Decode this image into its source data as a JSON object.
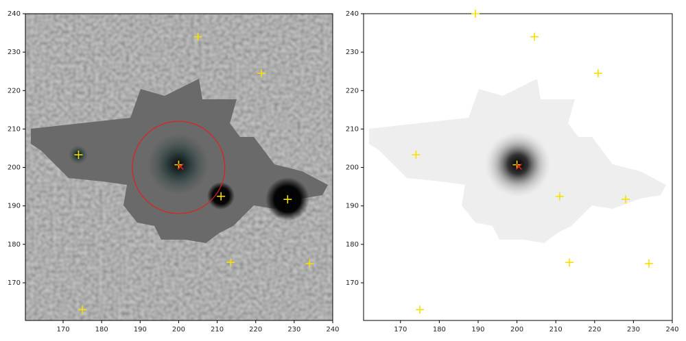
{
  "chart_data": [
    {
      "type": "scatter",
      "xlim": [
        160.2,
        240
      ],
      "ylim": [
        160.2,
        240
      ],
      "xticks": [
        170,
        180,
        190,
        200,
        210,
        220,
        230,
        240
      ],
      "yticks": [
        170,
        180,
        190,
        200,
        210,
        220,
        230,
        240
      ],
      "aperture": {
        "x": 200,
        "y": 200,
        "r": 12,
        "color": "#e02020"
      },
      "series": [
        {
          "color": "#f5e000",
          "marker": "plus",
          "x": [
            205,
            221.5,
            174,
            200,
            211,
            228.3,
            213.5,
            234,
            175
          ],
          "values": [
            234,
            224.5,
            203.3,
            200.7,
            192.5,
            191.7,
            175.3,
            175,
            163
          ]
        },
        {
          "color": "#e02020",
          "marker": "x",
          "x": [
            200.5
          ],
          "values": [
            200.2
          ]
        }
      ]
    },
    {
      "type": "scatter",
      "xlim": [
        160.5,
        240
      ],
      "ylim": [
        160.2,
        240
      ],
      "xticks": [
        170,
        180,
        190,
        200,
        210,
        220,
        230,
        240
      ],
      "yticks": [
        170,
        180,
        190,
        200,
        210,
        220,
        230,
        240
      ],
      "series": [
        {
          "color": "#f5e000",
          "marker": "plus",
          "x": [
            189.3,
            204.5,
            220.9,
            174,
            200,
            211,
            228,
            213.5,
            234,
            175
          ],
          "values": [
            240,
            234,
            224.5,
            203.3,
            200.7,
            192.5,
            191.7,
            175.3,
            175,
            163
          ]
        },
        {
          "color": "#e02020",
          "marker": "x",
          "x": [
            200.5
          ],
          "values": [
            200.2
          ]
        }
      ]
    }
  ]
}
